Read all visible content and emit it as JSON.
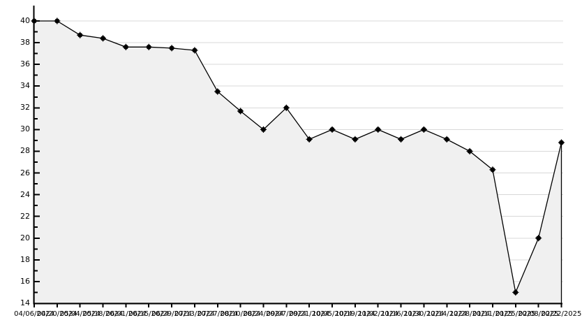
{
  "chart_data": {
    "type": "line",
    "title": "",
    "subtitle": "",
    "legend": "none",
    "grid": "horizontal-only",
    "area_fill": true,
    "marker": "filled-circle",
    "x_labels": [
      "04/06/2024",
      "04/20/2024",
      "05/04/2024",
      "05/18/2024",
      "06/01/2024",
      "06/15/2024",
      "06/29/2024",
      "07/13/2024",
      "07/27/2024",
      "08/10/2024",
      "08/24/2024",
      "09/07/2024",
      "09/21/2024",
      "10/05/2024",
      "10/19/2024",
      "11/02/2024",
      "11/16/2024",
      "11/30/2024",
      "12/14/2024",
      "12/28/2024",
      "01/11/2025",
      "01/25/2025",
      "02/08/2025",
      "02/22/2025"
    ],
    "series": [
      {
        "name": "value",
        "values": [
          40,
          40,
          38.7,
          38.4,
          37.6,
          37.6,
          37.5,
          37.3,
          33.5,
          31.7,
          30,
          32,
          29.1,
          30,
          29.1,
          30,
          29.1,
          30,
          29.1,
          28,
          26.3,
          15,
          20,
          28.8
        ]
      }
    ],
    "ylim": [
      14,
      40
    ],
    "y_ticks": [
      14,
      16,
      18,
      20,
      22,
      24,
      26,
      28,
      30,
      32,
      34,
      36,
      38,
      40
    ],
    "y_minor_tick_step": 1,
    "colors": {
      "line": "#000000",
      "marker": "#000000",
      "area_fill": "#f0f0f0",
      "grid": "#d8d8d8",
      "axis": "#000000",
      "background": "#ffffff",
      "label_text": "#000000"
    }
  }
}
